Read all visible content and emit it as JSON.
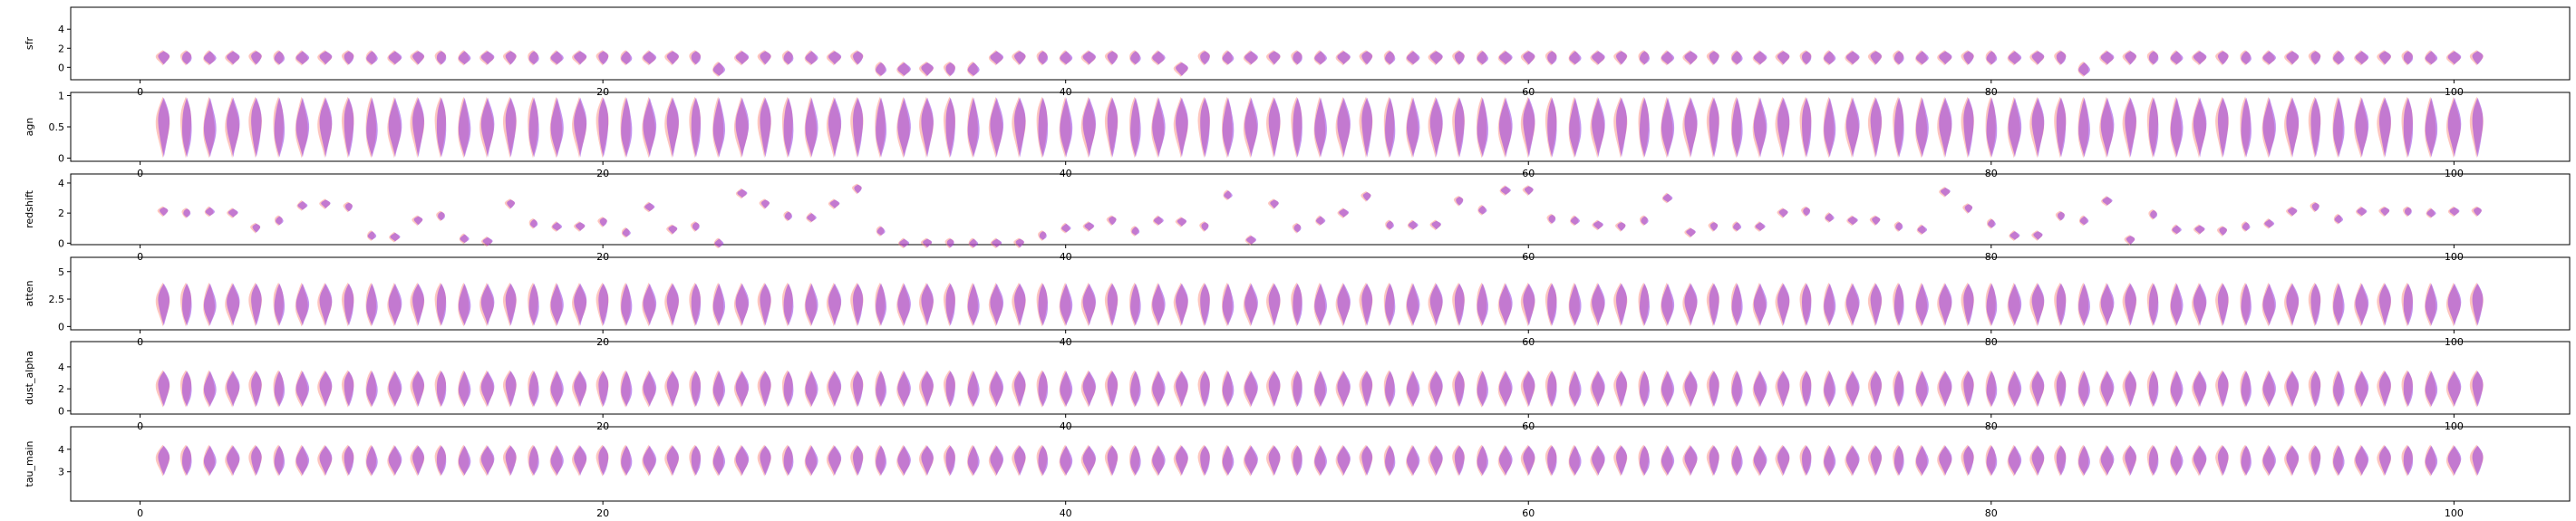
{
  "colors": {
    "series_a": "#fa8072",
    "series_b": "#8a2be2"
  },
  "chart_data": [
    {
      "type": "violin",
      "ylabel": "sfr",
      "ylim": [
        -1.3,
        6.3
      ],
      "yticks": [
        0,
        2,
        4
      ],
      "xlim": [
        -3,
        105
      ],
      "xticks": [
        0,
        20,
        40,
        60,
        80,
        100
      ],
      "x": [
        1,
        2,
        3,
        4,
        5,
        6,
        7,
        8,
        9,
        10,
        11,
        12,
        13,
        14,
        15,
        16,
        17,
        18,
        19,
        20,
        21,
        22,
        23,
        24,
        25,
        26,
        27,
        28,
        29,
        30,
        31,
        32,
        33,
        34,
        35,
        36,
        37,
        38,
        39,
        40,
        41,
        42,
        43,
        44,
        45,
        46,
        47,
        48,
        49,
        50,
        51,
        52,
        53,
        54,
        55,
        56,
        57,
        58,
        59,
        60,
        61,
        62,
        63,
        64,
        65,
        66,
        67,
        68,
        69,
        70,
        71,
        72,
        73,
        74,
        75,
        76,
        77,
        78,
        79,
        80,
        81,
        82,
        83,
        84,
        85,
        86,
        87,
        88,
        89,
        90,
        91,
        92,
        93,
        94,
        95,
        96,
        97,
        98,
        99,
        100,
        101
      ],
      "center": 1.0,
      "amplitude": 0.8,
      "low_points": [
        25,
        32,
        33,
        34,
        35,
        36,
        45,
        84
      ],
      "low_value": -0.2
    },
    {
      "type": "violin",
      "ylabel": "agn",
      "ylim": [
        -0.05,
        1.05
      ],
      "yticks": [
        0.0,
        0.5,
        1.0
      ],
      "xlim": [
        -3,
        105
      ],
      "xticks": [
        0,
        20,
        40,
        60,
        80,
        100
      ],
      "x_count": 101,
      "center": 0.35,
      "amplitude": 0.55
    },
    {
      "type": "violin",
      "ylabel": "redshift",
      "ylim": [
        -0.1,
        4.6
      ],
      "yticks": [
        0,
        2,
        4
      ],
      "xlim": [
        -3,
        105
      ],
      "xticks": [
        0,
        20,
        40,
        60,
        80,
        100
      ],
      "x_count": 101,
      "values": [
        2.1,
        2.0,
        2.1,
        2.0,
        1.0,
        1.5,
        2.5,
        2.6,
        2.4,
        0.5,
        0.4,
        1.5,
        1.8,
        0.3,
        0.1,
        2.6,
        1.3,
        1.1,
        1.1,
        1.4,
        0.7,
        2.4,
        0.9,
        1.1,
        0.0,
        3.3,
        2.6,
        1.8,
        1.7,
        2.6,
        3.6,
        0.8,
        0.0,
        0.0,
        0.0,
        0.0,
        0.0,
        0.0,
        0.5,
        1.0,
        1.1,
        1.5,
        0.8,
        1.5,
        1.4,
        1.1,
        3.2,
        0.2,
        2.6,
        1.0,
        1.5,
        2.0,
        3.1,
        1.2,
        1.2,
        1.2,
        2.8,
        2.2,
        3.5,
        3.5,
        1.6,
        1.5,
        1.2,
        1.1,
        1.5,
        3.0,
        0.7,
        1.1,
        1.1,
        1.1,
        2.0,
        2.1,
        1.7,
        1.5,
        1.5,
        1.1,
        0.9,
        3.4,
        2.3,
        1.3,
        0.5,
        0.5,
        1.8,
        1.5,
        2.8,
        0.2,
        1.9,
        0.9,
        0.9,
        0.8,
        1.1,
        1.3,
        2.1,
        2.4,
        1.6,
        2.1,
        2.1,
        2.1,
        2.0,
        2.1,
        2.1
      ],
      "amplitude": 0.35
    },
    {
      "type": "violin",
      "ylabel": "atten",
      "ylim": [
        -0.3,
        6.3
      ],
      "yticks": [
        0.0,
        2.5,
        5.0
      ],
      "xlim": [
        -3,
        105
      ],
      "xticks": [
        0,
        20,
        40,
        60,
        80,
        100
      ],
      "x_count": 101,
      "center": 2.0,
      "amplitude": 2.0
    },
    {
      "type": "violin",
      "ylabel": "dust_alpha",
      "ylim": [
        -0.3,
        6.3
      ],
      "yticks": [
        0,
        2,
        4
      ],
      "xlim": [
        -3,
        105
      ],
      "xticks": [
        0,
        20,
        40,
        60,
        80,
        100
      ],
      "x_count": 101,
      "center": 2.0,
      "amplitude": 1.7
    },
    {
      "type": "violin",
      "ylabel": "tau_main",
      "ylim": [
        1.7,
        5.0
      ],
      "yticks": [
        3,
        4
      ],
      "xlim": [
        -3,
        105
      ],
      "xticks": [
        0,
        20,
        40,
        60,
        80,
        100
      ],
      "x_count": 101,
      "center": 3.5,
      "amplitude": 0.7
    }
  ]
}
